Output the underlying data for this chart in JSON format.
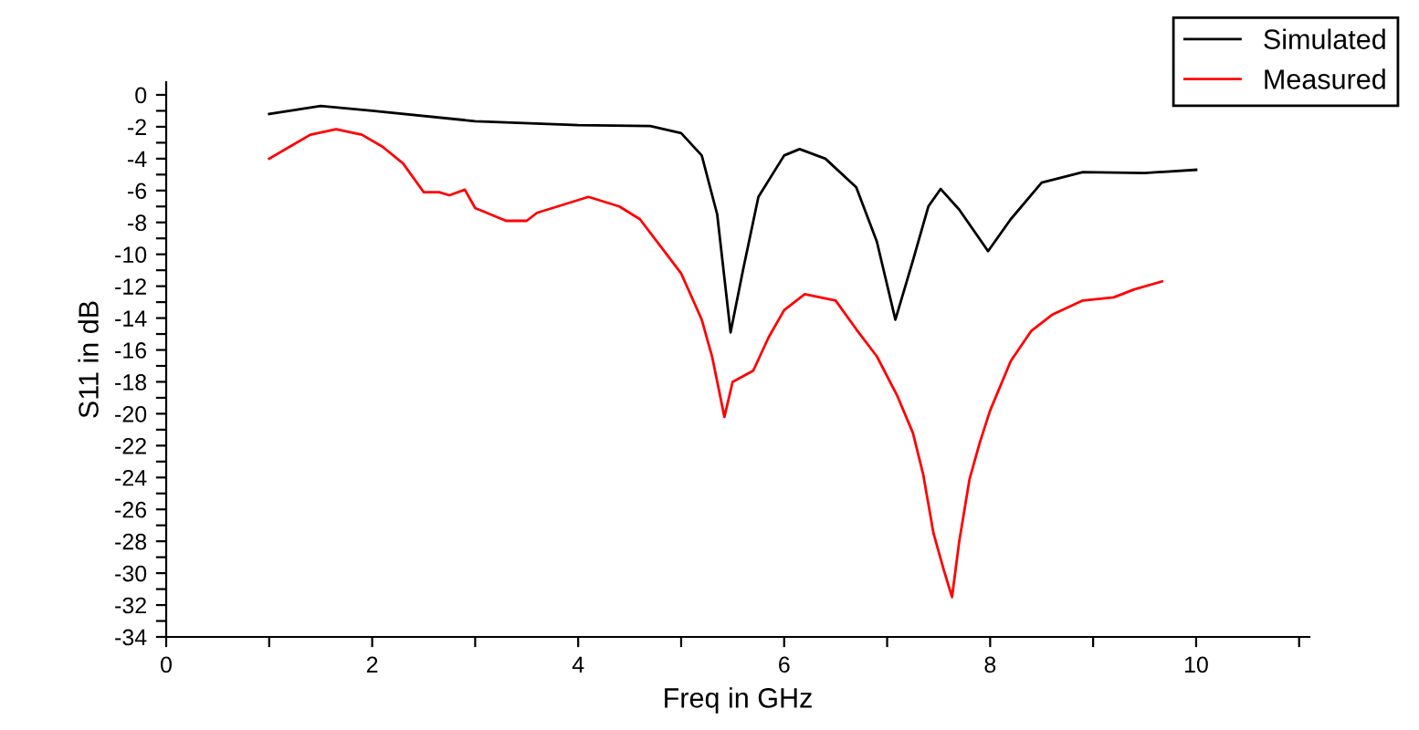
{
  "chart_data": {
    "type": "line",
    "xlabel": "Freq in GHz",
    "ylabel": "S11 in dB",
    "xlim": [
      0,
      11.1
    ],
    "ylim": [
      -34,
      0.8
    ],
    "xticks": [
      0,
      {
        "value": 1,
        "label": null
      },
      2,
      {
        "value": 3,
        "label": null
      },
      4,
      {
        "value": 5,
        "label": null
      },
      6,
      {
        "value": 7,
        "label": null
      },
      8,
      {
        "value": 9,
        "label": null
      },
      10,
      {
        "value": 11,
        "label": null
      }
    ],
    "yticks": [
      0,
      {
        "value": -1,
        "label": null
      },
      -2,
      {
        "value": -3,
        "label": null
      },
      -4,
      {
        "value": -5,
        "label": null
      },
      -6,
      {
        "value": -7,
        "label": null
      },
      -8,
      {
        "value": -9,
        "label": null
      },
      -10,
      {
        "value": -11,
        "label": null
      },
      -12,
      {
        "value": -13,
        "label": null
      },
      -14,
      {
        "value": -15,
        "label": null
      },
      -16,
      {
        "value": -17,
        "label": null
      },
      -18,
      {
        "value": -19,
        "label": null
      },
      -20,
      {
        "value": -21,
        "label": null
      },
      -22,
      {
        "value": -23,
        "label": null
      },
      -24,
      {
        "value": -25,
        "label": null
      },
      -26,
      {
        "value": -27,
        "label": null
      },
      -28,
      {
        "value": -29,
        "label": null
      },
      -30,
      {
        "value": -31,
        "label": null
      },
      -32,
      {
        "value": -33,
        "label": null
      },
      -34
    ],
    "grid": false,
    "legend": "top right",
    "series": [
      {
        "name": "Simulated",
        "color": "#000000",
        "x": [
          1,
          1.5,
          2,
          3,
          4,
          4.7,
          5.0,
          5.2,
          5.35,
          5.48,
          5.6,
          5.75,
          6.0,
          6.15,
          6.4,
          6.7,
          6.9,
          7.08,
          7.25,
          7.4,
          7.52,
          7.7,
          7.98,
          8.2,
          8.5,
          8.9,
          9.5,
          10
        ],
        "values": [
          -1.2,
          -0.7,
          -1.0,
          -1.65,
          -1.9,
          -1.95,
          -2.4,
          -3.8,
          -7.5,
          -14.9,
          -11,
          -6.4,
          -3.8,
          -3.4,
          -4,
          -5.8,
          -9.2,
          -14.1,
          -10.4,
          -7,
          -5.9,
          -7.2,
          -9.8,
          -7.8,
          -5.5,
          -4.85,
          -4.9,
          -4.7
        ]
      },
      {
        "name": "Measured",
        "color": "#ff0000",
        "x": [
          1.0,
          1.2,
          1.4,
          1.65,
          1.9,
          2.1,
          2.3,
          2.5,
          2.65,
          2.75,
          2.9,
          3.0,
          3.3,
          3.5,
          3.6,
          3.8,
          4.1,
          4.4,
          4.6,
          4.8,
          5.0,
          5.2,
          5.3,
          5.42,
          5.5,
          5.7,
          5.85,
          6.0,
          6.2,
          6.5,
          6.7,
          6.9,
          7.1,
          7.25,
          7.35,
          7.45,
          7.55,
          7.63,
          7.7,
          7.8,
          7.9,
          8.0,
          8.2,
          8.4,
          8.6,
          8.9,
          9.2,
          9.4,
          9.67
        ],
        "values": [
          -4.0,
          -3.25,
          -2.5,
          -2.15,
          -2.5,
          -3.25,
          -4.3,
          -6.1,
          -6.1,
          -6.3,
          -5.95,
          -7.1,
          -7.9,
          -7.9,
          -7.4,
          -7,
          -6.4,
          -7,
          -7.8,
          -9.5,
          -11.2,
          -14.1,
          -16.4,
          -20.2,
          -18,
          -17.3,
          -15.2,
          -13.5,
          -12.5,
          -12.9,
          -14.7,
          -16.4,
          -18.9,
          -21.2,
          -23.8,
          -27.5,
          -29.8,
          -31.5,
          -28,
          -24.1,
          -21.8,
          -19.8,
          -16.7,
          -14.8,
          -13.8,
          -12.9,
          -12.7,
          -12.2,
          -11.7
        ]
      }
    ]
  }
}
